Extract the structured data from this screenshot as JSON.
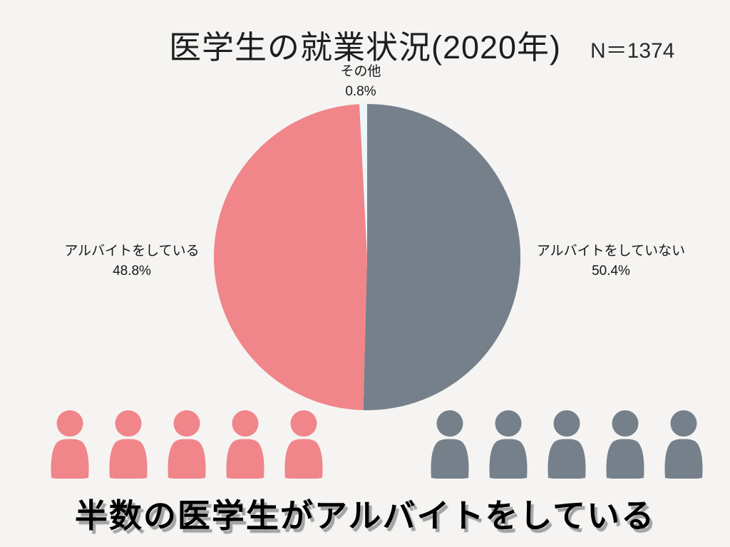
{
  "page": {
    "background_color": "#f5f4f2"
  },
  "header": {
    "title": "医学生の就業状況(2020年)",
    "sample_label": "N＝1374"
  },
  "chart_data": {
    "type": "pie",
    "title": "医学生の就業状況(2020年)",
    "sample_size": 1374,
    "start_angle_deg": 0,
    "direction": "clockwise",
    "grid": false,
    "legend_position": "labels-around-pie",
    "slices": [
      {
        "label": "アルバイトをしていない",
        "value": 50.4,
        "pct_label": "50.4%",
        "color": "#75808a",
        "label_side": "right"
      },
      {
        "label": "アルバイトをしている",
        "value": 48.8,
        "pct_label": "48.8%",
        "color": "#f0858a",
        "label_side": "left"
      },
      {
        "label": "その他",
        "value": 0.8,
        "pct_label": "0.8%",
        "color": "#ebf6fa",
        "label_side": "top"
      }
    ]
  },
  "pictograph": {
    "groups": [
      {
        "name": "working-students",
        "count": 5,
        "color": "#f0858a"
      },
      {
        "name": "not-working-students",
        "count": 5,
        "color": "#75808a"
      }
    ]
  },
  "footer": {
    "headline": "半数の医学生がアルバイトをしている"
  }
}
